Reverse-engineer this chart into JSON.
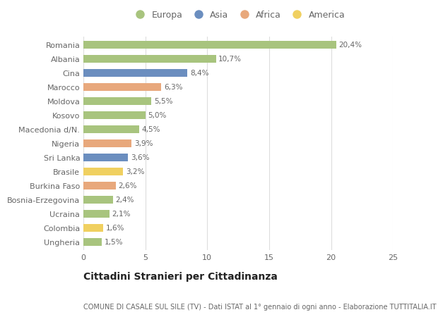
{
  "countries": [
    "Romania",
    "Albania",
    "Cina",
    "Marocco",
    "Moldova",
    "Kosovo",
    "Macedonia d/N.",
    "Nigeria",
    "Sri Lanka",
    "Brasile",
    "Burkina Faso",
    "Bosnia-Erzegovina",
    "Ucraina",
    "Colombia",
    "Ungheria"
  ],
  "values": [
    20.4,
    10.7,
    8.4,
    6.3,
    5.5,
    5.0,
    4.5,
    3.9,
    3.6,
    3.2,
    2.6,
    2.4,
    2.1,
    1.6,
    1.5
  ],
  "labels": [
    "20,4%",
    "10,7%",
    "8,4%",
    "6,3%",
    "5,5%",
    "5,0%",
    "4,5%",
    "3,9%",
    "3,6%",
    "3,2%",
    "2,6%",
    "2,4%",
    "2,1%",
    "1,6%",
    "1,5%"
  ],
  "continents": [
    "Europa",
    "Europa",
    "Asia",
    "Africa",
    "Europa",
    "Europa",
    "Europa",
    "Africa",
    "Asia",
    "America",
    "Africa",
    "Europa",
    "Europa",
    "America",
    "Europa"
  ],
  "continent_colors": {
    "Europa": "#a8c47e",
    "Asia": "#6b8ebf",
    "Africa": "#e8a87c",
    "America": "#f0d060"
  },
  "legend_order": [
    "Europa",
    "Asia",
    "Africa",
    "America"
  ],
  "title": "Cittadini Stranieri per Cittadinanza",
  "subtitle": "COMUNE DI CASALE SUL SILE (TV) - Dati ISTAT al 1° gennaio di ogni anno - Elaborazione TUTTITALIA.IT",
  "xlim": [
    0,
    25
  ],
  "xticks": [
    0,
    5,
    10,
    15,
    20,
    25
  ],
  "bg_color": "#ffffff",
  "grid_color": "#dddddd",
  "bar_height": 0.55,
  "title_fontsize": 10,
  "subtitle_fontsize": 7,
  "label_fontsize": 7.5,
  "tick_fontsize": 8,
  "legend_fontsize": 9
}
